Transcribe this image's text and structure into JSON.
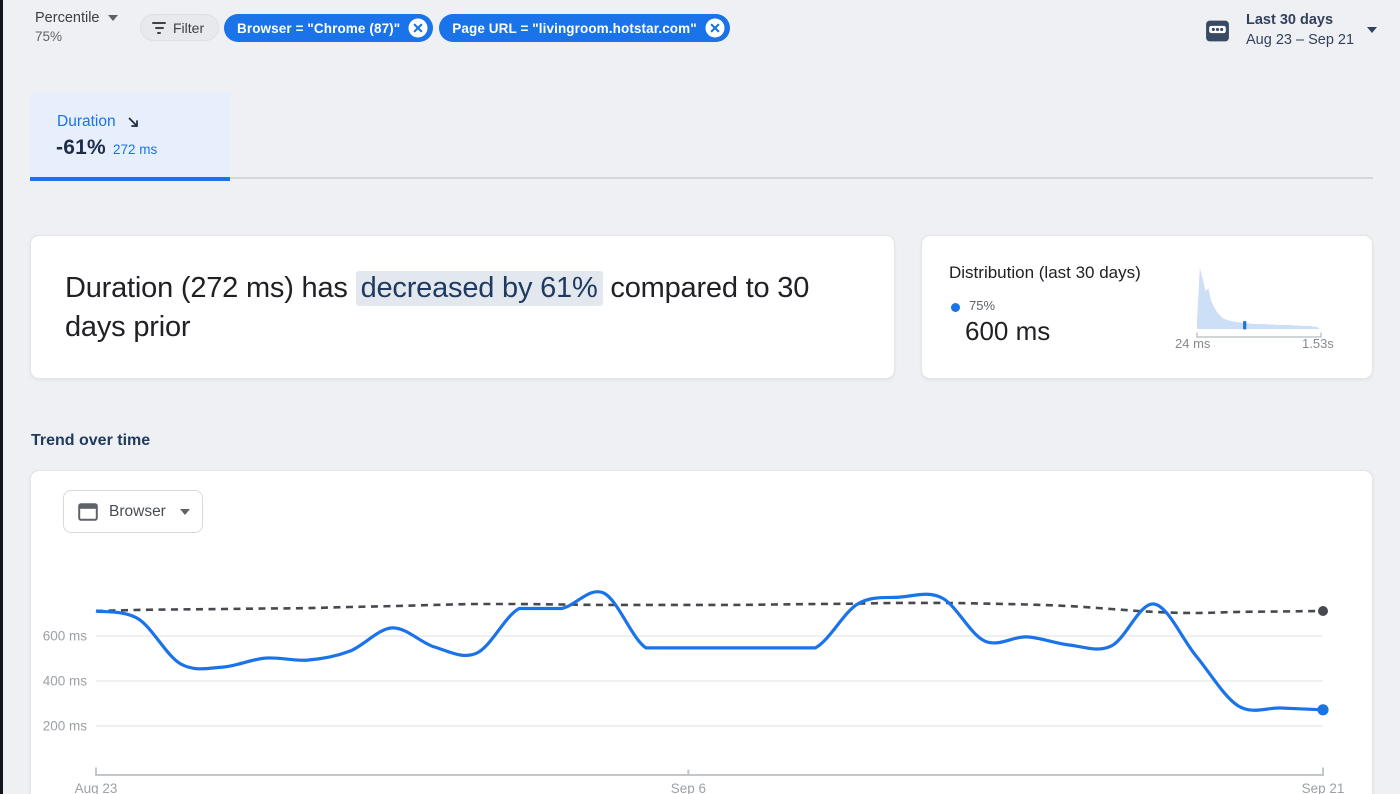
{
  "page": {
    "background": "#eef0f3",
    "accent_color": "#1a73e8"
  },
  "toolbar": {
    "percentile_label": "Percentile",
    "percentile_value": "75%",
    "filter_label": "Filter",
    "chips": [
      {
        "label": "Browser = \"Chrome (87)\""
      },
      {
        "label": "Page URL = \"livingroom.hotstar.com\""
      }
    ],
    "date_range": {
      "primary": "Last 30 days",
      "secondary": "Aug 23 – Sep 21"
    }
  },
  "metric_tab": {
    "title": "Duration",
    "change": "-61%",
    "value": "272 ms"
  },
  "headline": {
    "prefix": "Duration (272 ms) has ",
    "highlight": "decreased by 61%",
    "suffix": " compared to 30 days prior"
  },
  "distribution": {
    "title": "Distribution (last 30 days)",
    "percentile_label": "75%",
    "percentile_value": "600 ms",
    "axis_min_label": "24 ms",
    "axis_max_label": "1.53s"
  },
  "trend": {
    "section_title": "Trend over time",
    "dimension_label": "Browser"
  },
  "chart_data": [
    {
      "id": "distribution_sparkline",
      "type": "area",
      "title": "Distribution (last 30 days)",
      "x_range_labels": [
        "24 ms",
        "1.53s"
      ],
      "percentile_marker": {
        "label": "75%",
        "value_ms": 600,
        "axis_fraction": 0.385
      },
      "density": [
        0.13,
        1.0,
        0.82,
        0.62,
        0.67,
        0.46,
        0.36,
        0.28,
        0.23,
        0.18,
        0.16,
        0.145,
        0.13,
        0.123,
        0.115,
        0.107,
        0.1,
        0.1,
        0.09,
        0.09,
        0.082,
        0.082,
        0.082,
        0.082,
        0.082,
        0.074,
        0.074,
        0.074,
        0.066,
        0.066,
        0.066,
        0.066,
        0.066,
        0.066,
        0.057,
        0.057,
        0.057,
        0.049,
        0.049,
        0.049,
        0.049,
        0.041,
        0.033,
        0.021
      ],
      "fill_color": "#cddef7",
      "marker_color": "#1a73e8"
    },
    {
      "id": "trend_over_time",
      "type": "line",
      "title": "Trend over time",
      "unit": "ms",
      "grid": true,
      "ylim": [
        0,
        1000
      ],
      "x": [
        "Aug 23",
        "Aug 24",
        "Aug 25",
        "Aug 26",
        "Aug 27",
        "Aug 28",
        "Aug 29",
        "Aug 30",
        "Aug 31",
        "Sep 1",
        "Sep 2",
        "Sep 3",
        "Sep 4",
        "Sep 5",
        "Sep 6",
        "Sep 7",
        "Sep 8",
        "Sep 9",
        "Sep 10",
        "Sep 11",
        "Sep 12",
        "Sep 13",
        "Sep 14",
        "Sep 15",
        "Sep 16",
        "Sep 17",
        "Sep 18",
        "Sep 19",
        "Sep 20",
        "Sep 21"
      ],
      "xticks": [
        "Aug 23",
        "Sep 6",
        "Sep 21"
      ],
      "yticks": [
        {
          "value": 200,
          "label": "200 ms"
        },
        {
          "value": 400,
          "label": "400 ms"
        },
        {
          "value": 600,
          "label": "600 ms"
        }
      ],
      "series": [
        {
          "name": "Duration (last 30 days)",
          "style": "solid",
          "color": "#1a73e8",
          "values": [
            711,
            676,
            476,
            462,
            502,
            493,
            533,
            636,
            551,
            524,
            722,
            722,
            791,
            547,
            547,
            547,
            547,
            547,
            742,
            773,
            769,
            578,
            596,
            560,
            556,
            742,
            511,
            289,
            280,
            272
          ]
        },
        {
          "name": "30 days prior",
          "style": "dashed",
          "color": "#46494e",
          "values": [
            711,
            716,
            718,
            720,
            722,
            724,
            729,
            733,
            738,
            742,
            742,
            740,
            738,
            738,
            738,
            738,
            740,
            742,
            744,
            747,
            747,
            744,
            740,
            733,
            720,
            707,
            702,
            707,
            709,
            711
          ]
        }
      ]
    }
  ]
}
